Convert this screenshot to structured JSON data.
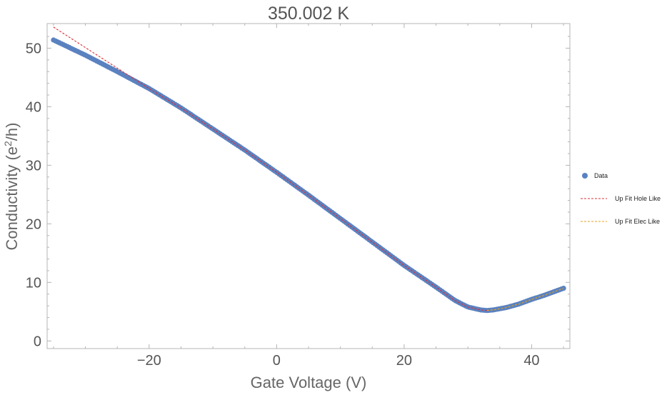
{
  "chart_data": {
    "type": "scatter",
    "title": "350.002 K",
    "xlabel": "Gate Voltage (V)",
    "ylabel_main": "Conductivity (e",
    "ylabel_sup": "2",
    "ylabel_tail": "/h)",
    "xlim": [
      -36,
      46
    ],
    "ylim": [
      -1.3,
      54.2
    ],
    "xticks": [
      -20,
      0,
      20,
      40
    ],
    "xtick_labels": [
      "−20",
      "0",
      "20",
      "40"
    ],
    "yticks": [
      0,
      10,
      20,
      30,
      40,
      50
    ],
    "ytick_labels": [
      "0",
      "10",
      "20",
      "30",
      "40",
      "50"
    ],
    "grid": false,
    "legend_position": "right",
    "series": [
      {
        "name": "Data",
        "style": "points",
        "color": "#5b82c0",
        "x_range": [
          -35,
          45
        ],
        "points": [
          [
            -35,
            51.4
          ],
          [
            -30,
            48.8
          ],
          [
            -25,
            46.0
          ],
          [
            -20,
            43.1
          ],
          [
            -15,
            39.8
          ],
          [
            -10,
            36.2
          ],
          [
            -5,
            32.6
          ],
          [
            0,
            28.8
          ],
          [
            5,
            24.9
          ],
          [
            10,
            20.9
          ],
          [
            15,
            16.9
          ],
          [
            20,
            12.9
          ],
          [
            25,
            9.2
          ],
          [
            28,
            6.9
          ],
          [
            30,
            5.8
          ],
          [
            32,
            5.3
          ],
          [
            33,
            5.2
          ],
          [
            34,
            5.3
          ],
          [
            36,
            5.7
          ],
          [
            38,
            6.3
          ],
          [
            40,
            7.1
          ],
          [
            42,
            7.8
          ],
          [
            45,
            9.0
          ]
        ]
      },
      {
        "name": "Up Fit Hole Like",
        "style": "dashed",
        "color": "#d9303a",
        "points": [
          [
            -35,
            53.6
          ],
          [
            -30,
            50.1
          ],
          [
            -25,
            46.6
          ],
          [
            -20,
            43.1
          ],
          [
            -15,
            39.8
          ],
          [
            -10,
            36.2
          ],
          [
            -5,
            32.6
          ],
          [
            0,
            28.8
          ],
          [
            5,
            24.9
          ],
          [
            10,
            20.9
          ],
          [
            15,
            16.9
          ],
          [
            20,
            12.9
          ],
          [
            25,
            9.2
          ],
          [
            28,
            6.9
          ],
          [
            30,
            5.8
          ],
          [
            32,
            5.3
          ],
          [
            33,
            5.2
          ]
        ]
      },
      {
        "name": "Up Fit Elec Like",
        "style": "dashed",
        "color": "#e0a020",
        "points": [
          [
            33,
            5.2
          ],
          [
            34,
            5.3
          ],
          [
            36,
            5.7
          ],
          [
            38,
            6.3
          ],
          [
            40,
            7.1
          ],
          [
            42,
            7.8
          ],
          [
            45,
            9.0
          ]
        ]
      }
    ]
  }
}
